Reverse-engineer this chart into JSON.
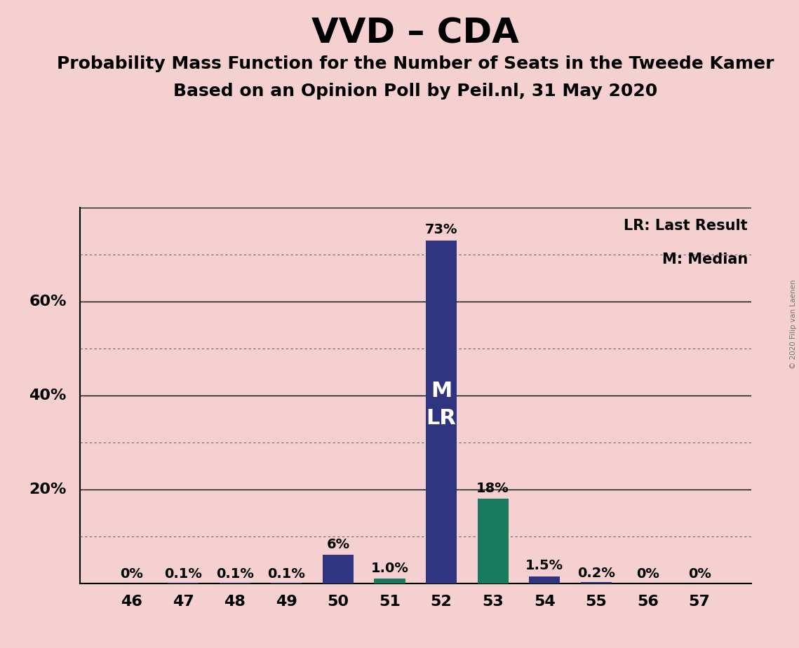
{
  "title": "VVD – CDA",
  "subtitle1": "Probability Mass Function for the Number of Seats in the Tweede Kamer",
  "subtitle2": "Based on an Opinion Poll by Peil.nl, 31 May 2020",
  "watermark": "© 2020 Filip van Laenen",
  "categories": [
    46,
    47,
    48,
    49,
    50,
    51,
    52,
    53,
    54,
    55,
    56,
    57
  ],
  "values": [
    0.0,
    0.1,
    0.1,
    0.1,
    6.0,
    1.0,
    73.0,
    18.0,
    1.5,
    0.2,
    0.0,
    0.0
  ],
  "labels": [
    "0%",
    "0.1%",
    "0.1%",
    "0.1%",
    "6%",
    "1.0%",
    "73%",
    "18%",
    "1.5%",
    "0.2%",
    "0%",
    "0%"
  ],
  "bar_colors": [
    "#2e3480",
    "#2e3480",
    "#2e3480",
    "#2e3480",
    "#2e3480",
    "#1a7a5e",
    "#2e3480",
    "#1a7a5e",
    "#2e3480",
    "#2e3480",
    "#2e3480",
    "#2e3480"
  ],
  "background_color": "#f5d0d0",
  "title_fontsize": 36,
  "subtitle_fontsize": 18,
  "label_fontsize": 14,
  "tick_fontsize": 16,
  "ylim": [
    0,
    80
  ],
  "solid_yticks": [
    20,
    40,
    60,
    80
  ],
  "dotted_yticks": [
    10,
    30,
    50,
    70
  ],
  "ytick_display": [
    20,
    40,
    60
  ],
  "ytick_labels": [
    "20%",
    "40%",
    "60%"
  ],
  "legend_text1": "LR: Last Result",
  "legend_text2": "M: Median",
  "bar_label_52": "M\nLR",
  "bar_width": 0.6,
  "xlim": [
    45.0,
    58.0
  ]
}
